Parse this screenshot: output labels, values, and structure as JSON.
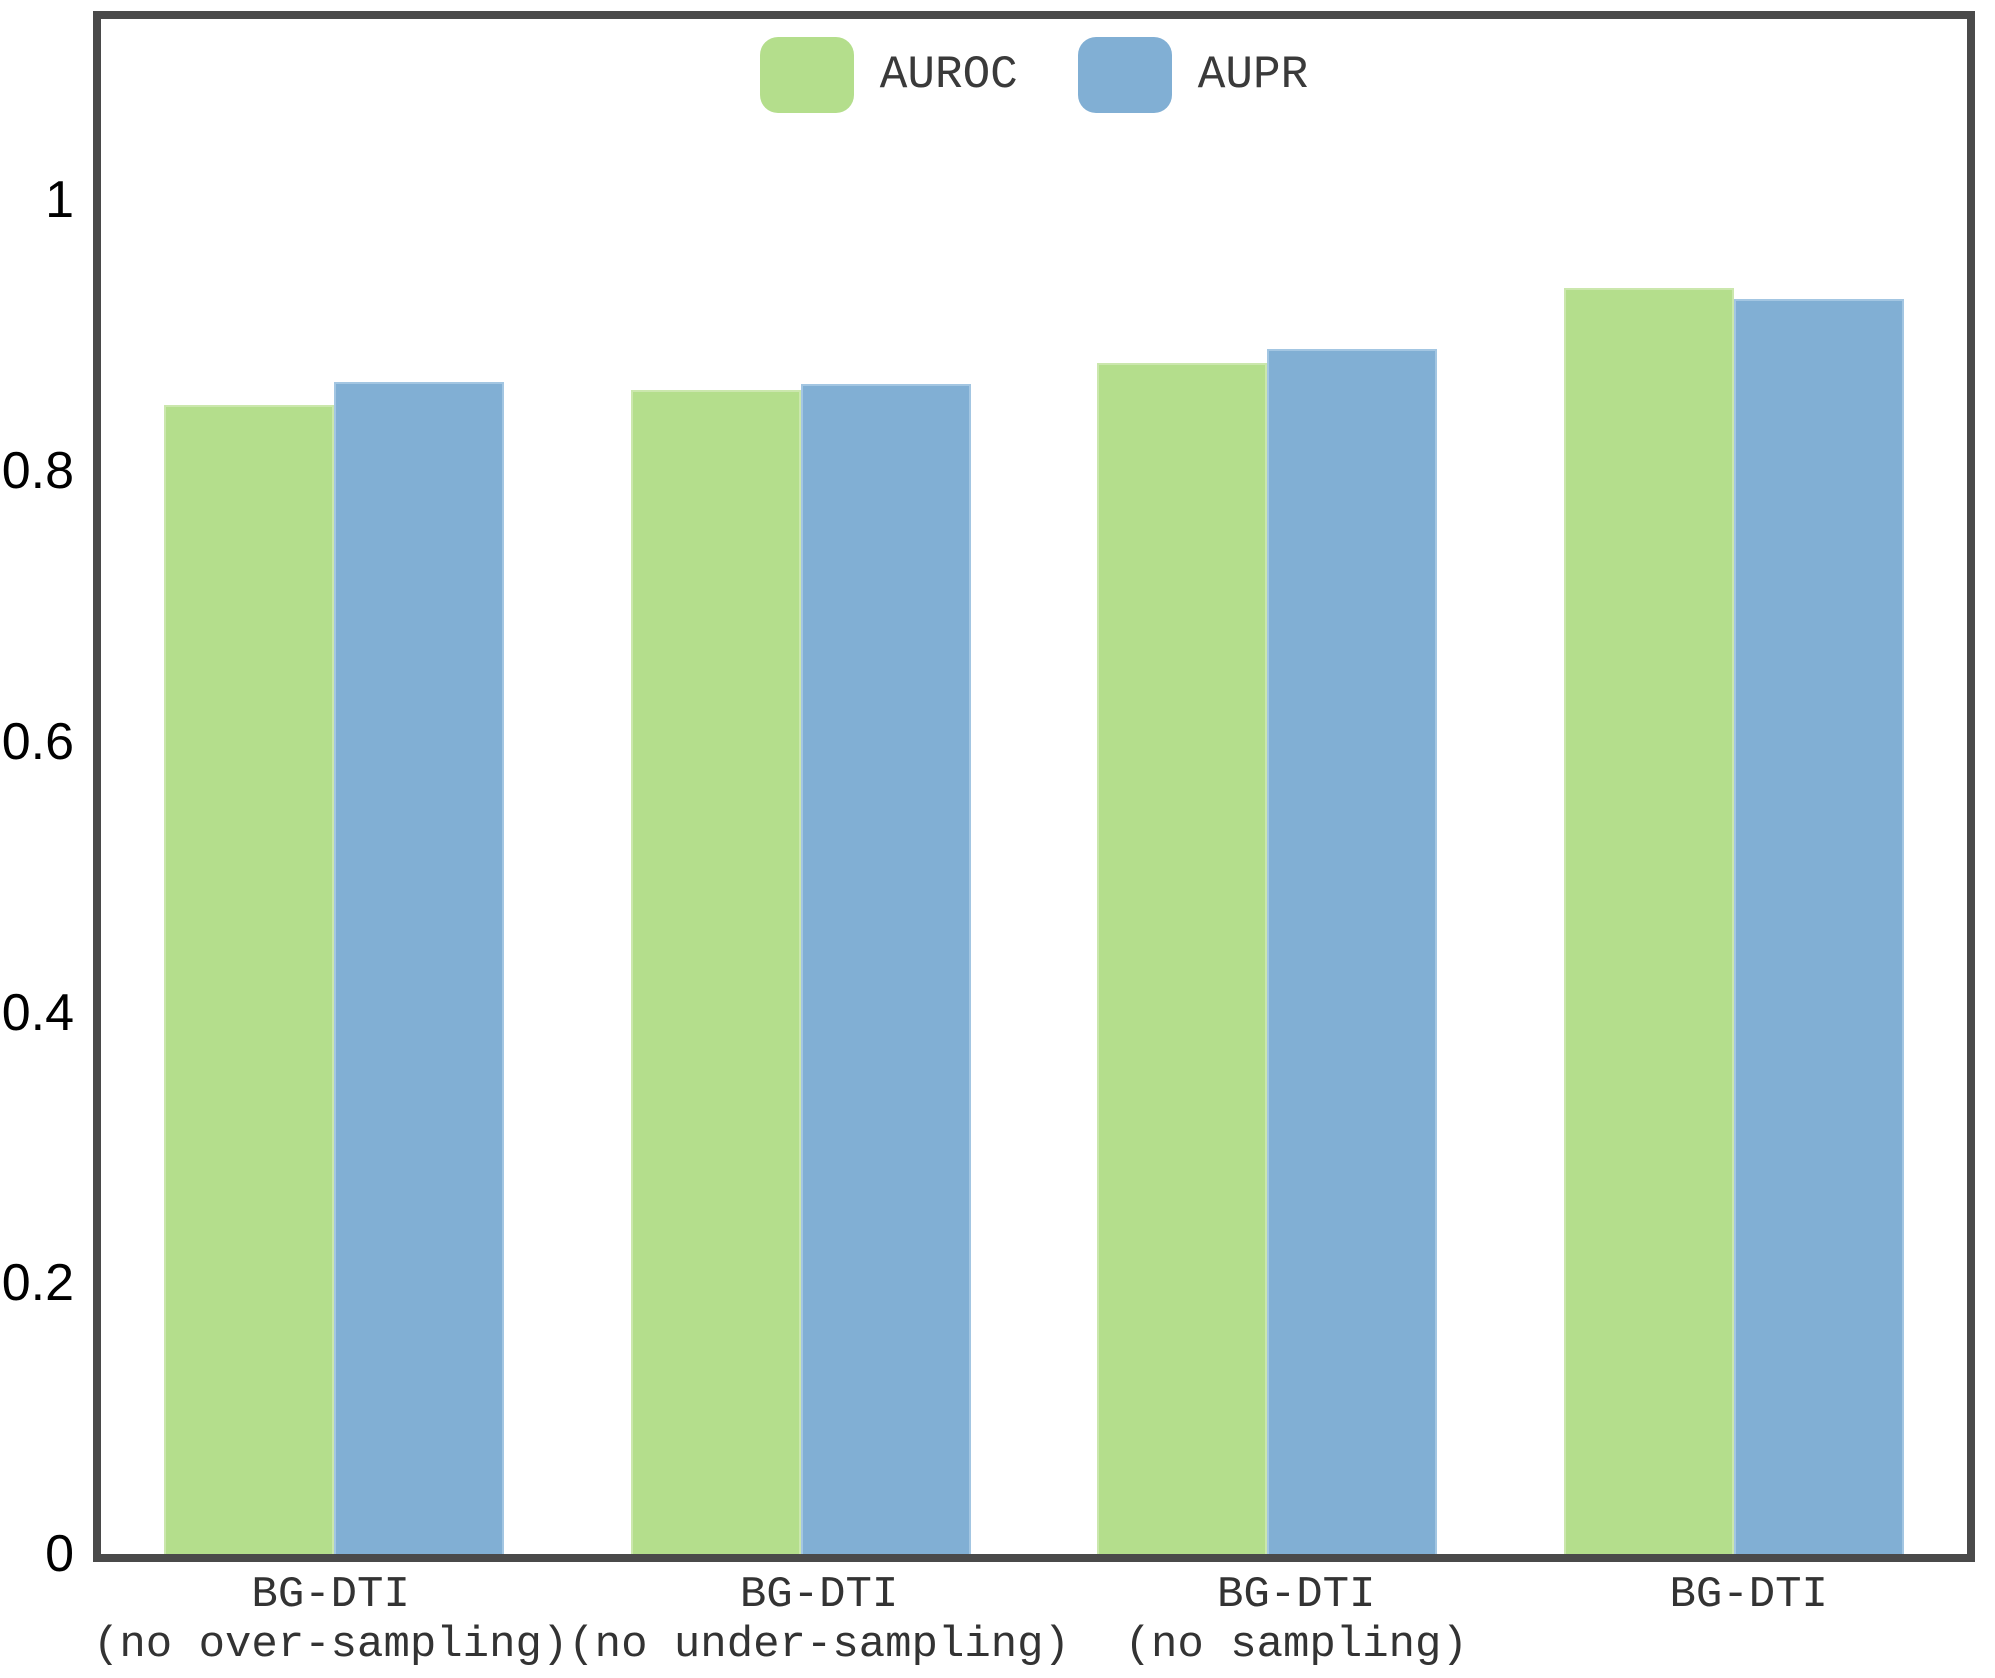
{
  "chart_data": {
    "type": "bar",
    "title": "",
    "xlabel": "",
    "ylabel": "",
    "categories": [
      "BG-DTI\n(no over-sampling)",
      "BG-DTI\n(no under-sampling)",
      "BG-DTI\n(no sampling)",
      "BG-DTI"
    ],
    "series": [
      {
        "name": "AUROC",
        "color": "#b4de8c",
        "edge_color": "#cbe7ad",
        "values": [
          0.849,
          0.86,
          0.88,
          0.935
        ]
      },
      {
        "name": "AUPR",
        "color": "#81afd4",
        "edge_color": "#a3c6e2",
        "values": [
          0.866,
          0.864,
          0.89,
          0.927
        ]
      }
    ],
    "ylim": [
      0,
      1.134
    ],
    "yticks": [
      0,
      0.2,
      0.4,
      0.6,
      0.8,
      1
    ],
    "ytick_labels": [
      "0",
      "0.2",
      "0.4",
      "0.6",
      "0.8",
      "1"
    ],
    "grid": false,
    "legend_position": "top-center"
  },
  "legend": {
    "items": [
      {
        "label": "AUROC",
        "color": "#b4de8c"
      },
      {
        "label": "AUPR",
        "color": "#81afd4"
      }
    ]
  },
  "frame": {
    "border_color": "#4a4a4a",
    "background": "#ffffff"
  }
}
